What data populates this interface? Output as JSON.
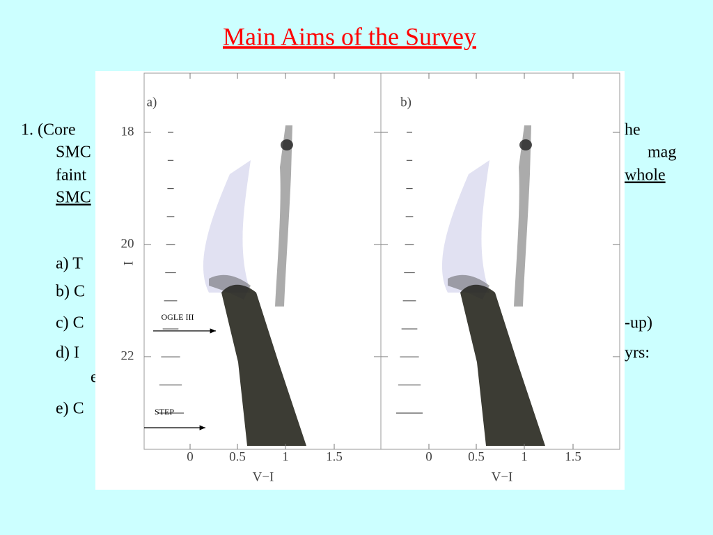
{
  "header": {
    "title": "Main Aims of the Survey"
  },
  "body": {
    "left": [
      "1.  (Core",
      "SMC",
      "faint",
      "SMC",
      "a)   T",
      "b)   C",
      "c)   C",
      "d)   I",
      "e",
      "e)   C"
    ],
    "right": [
      "he",
      "mag",
      "whole",
      "-up)",
      "yrs:"
    ]
  },
  "figure": {
    "ylabel": "I",
    "yticks": [
      "18",
      "20",
      "22"
    ],
    "panels": [
      {
        "label": "a)",
        "xlabel": "V−I",
        "xticks": [
          "0",
          "0.5",
          "1",
          "1.5"
        ]
      },
      {
        "label": "b)",
        "xlabel": "V−I",
        "xticks": [
          "0",
          "0.5",
          "1",
          "1.5"
        ]
      }
    ],
    "annotations": [
      "OGLE III",
      "STEP"
    ]
  }
}
